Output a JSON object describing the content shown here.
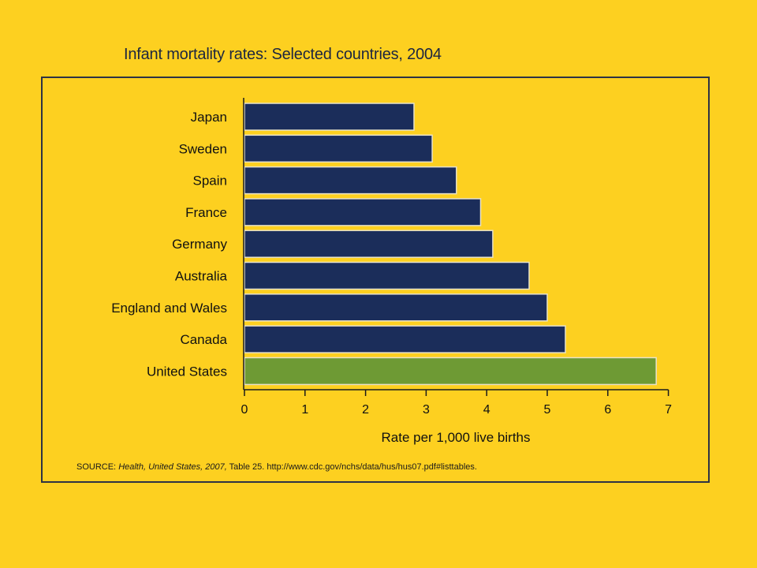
{
  "chart_data": {
    "type": "bar",
    "orientation": "horizontal",
    "title": "Infant mortality rates:  Selected countries, 2004",
    "categories": [
      "Japan",
      "Sweden",
      "Spain",
      "France",
      "Germany",
      "Australia",
      "England and Wales",
      "Canada",
      "United States"
    ],
    "values": [
      2.8,
      3.1,
      3.5,
      3.9,
      4.1,
      4.7,
      5.0,
      5.3,
      6.8
    ],
    "xlabel": "Rate per 1,000 live births",
    "ylabel": "",
    "xlim": [
      0,
      7
    ],
    "xticks": [
      "0",
      "1",
      "2",
      "3",
      "4",
      "5",
      "6",
      "7"
    ],
    "grid": false,
    "colors": {
      "default_bar": "#1B2D5A",
      "highlight_bar": "#6E9A34",
      "highlight_category": "United States",
      "background": "#FDD020"
    }
  },
  "source": {
    "prefix": "SOURCE:  ",
    "italic": "Health, United States, 2007,",
    "suffix": " Table 25. http://www.cdc.gov/nchs/data/hus/hus07.pdf#listtables."
  }
}
